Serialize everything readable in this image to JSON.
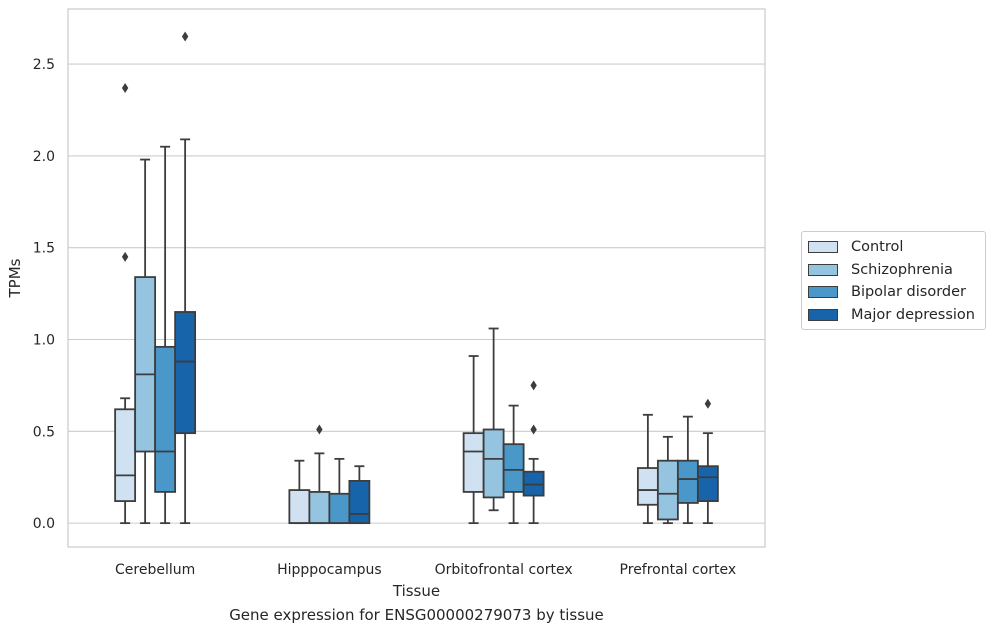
{
  "chart_data": {
    "type": "box",
    "title": "",
    "caption": "Gene expression for ENSG00000279073 by tissue",
    "xlabel": "Tissue",
    "ylabel": "TPMs",
    "ylim": [
      -0.13,
      2.8
    ],
    "yticks": [
      "0.0",
      "0.5",
      "1.0",
      "1.5",
      "2.0",
      "2.5"
    ],
    "grid": true,
    "legend_position": "right",
    "categories": [
      "Cerebellum",
      "Hipppocampus",
      "Orbitofrontal cortex",
      "Prefrontal cortex"
    ],
    "series": [
      {
        "name": "Control",
        "color": "#d0e1f2",
        "boxes": [
          {
            "whislo": 0.0,
            "q1": 0.12,
            "med": 0.26,
            "q3": 0.62,
            "whishi": 0.68,
            "fliers": [
              1.45,
              2.37
            ]
          },
          {
            "whislo": 0.0,
            "q1": 0.0,
            "med": 0.0,
            "q3": 0.18,
            "whishi": 0.34,
            "fliers": []
          },
          {
            "whislo": 0.0,
            "q1": 0.17,
            "med": 0.39,
            "q3": 0.49,
            "whishi": 0.91,
            "fliers": []
          },
          {
            "whislo": 0.0,
            "q1": 0.1,
            "med": 0.18,
            "q3": 0.3,
            "whishi": 0.59,
            "fliers": []
          }
        ]
      },
      {
        "name": "Schizophrenia",
        "color": "#94c4df",
        "boxes": [
          {
            "whislo": 0.0,
            "q1": 0.39,
            "med": 0.81,
            "q3": 1.34,
            "whishi": 1.98,
            "fliers": []
          },
          {
            "whislo": 0.0,
            "q1": 0.0,
            "med": 0.0,
            "q3": 0.17,
            "whishi": 0.38,
            "fliers": [
              0.51
            ]
          },
          {
            "whislo": 0.07,
            "q1": 0.14,
            "med": 0.35,
            "q3": 0.51,
            "whishi": 1.06,
            "fliers": []
          },
          {
            "whislo": 0.0,
            "q1": 0.02,
            "med": 0.16,
            "q3": 0.34,
            "whishi": 0.47,
            "fliers": []
          }
        ]
      },
      {
        "name": "Bipolar disorder",
        "color": "#4a98c9",
        "boxes": [
          {
            "whislo": 0.0,
            "q1": 0.17,
            "med": 0.39,
            "q3": 0.96,
            "whishi": 2.05,
            "fliers": []
          },
          {
            "whislo": 0.0,
            "q1": 0.0,
            "med": 0.0,
            "q3": 0.16,
            "whishi": 0.35,
            "fliers": []
          },
          {
            "whislo": 0.0,
            "q1": 0.17,
            "med": 0.29,
            "q3": 0.43,
            "whishi": 0.64,
            "fliers": []
          },
          {
            "whislo": 0.0,
            "q1": 0.11,
            "med": 0.24,
            "q3": 0.34,
            "whishi": 0.58,
            "fliers": []
          }
        ]
      },
      {
        "name": "Major depression",
        "color": "#1764ab",
        "boxes": [
          {
            "whislo": 0.0,
            "q1": 0.49,
            "med": 0.88,
            "q3": 1.15,
            "whishi": 2.09,
            "fliers": [
              2.65
            ]
          },
          {
            "whislo": 0.0,
            "q1": 0.0,
            "med": 0.05,
            "q3": 0.23,
            "whishi": 0.31,
            "fliers": []
          },
          {
            "whislo": 0.0,
            "q1": 0.15,
            "med": 0.21,
            "q3": 0.28,
            "whishi": 0.35,
            "fliers": [
              0.51,
              0.75
            ]
          },
          {
            "whislo": 0.0,
            "q1": 0.12,
            "med": 0.25,
            "q3": 0.31,
            "whishi": 0.49,
            "fliers": [
              0.65
            ]
          }
        ]
      }
    ]
  }
}
